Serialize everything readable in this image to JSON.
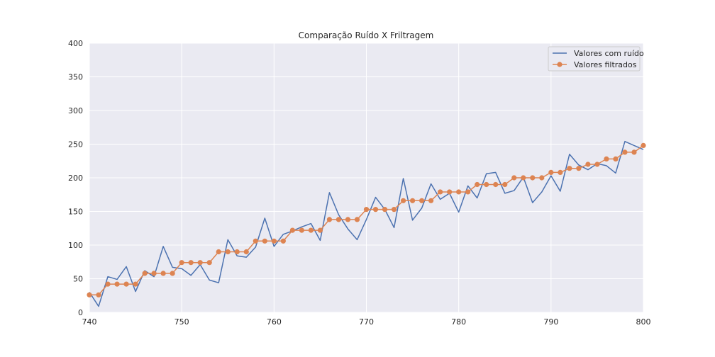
{
  "chart_data": {
    "type": "line",
    "title": "Comparação Ruído X Friltragem",
    "xlabel": "",
    "ylabel": "",
    "xlim": [
      740,
      800
    ],
    "ylim": [
      0,
      400
    ],
    "x_ticks": [
      740,
      750,
      760,
      770,
      780,
      790,
      800
    ],
    "y_ticks": [
      0,
      50,
      100,
      150,
      200,
      250,
      300,
      350,
      400
    ],
    "grid": true,
    "legend_position": "top-right",
    "series": [
      {
        "name": "Valores com ruído",
        "color": "#4c72b0",
        "marker": "none",
        "x": [
          740,
          741,
          742,
          743,
          744,
          745,
          746,
          747,
          748,
          749,
          750,
          751,
          752,
          753,
          754,
          755,
          756,
          757,
          758,
          759,
          760,
          761,
          762,
          763,
          764,
          765,
          766,
          767,
          768,
          769,
          770,
          771,
          772,
          773,
          774,
          775,
          776,
          777,
          778,
          779,
          780,
          781,
          782,
          783,
          784,
          785,
          786,
          787,
          788,
          789,
          790,
          791,
          792,
          793,
          794,
          795,
          796,
          797,
          798,
          799,
          800
        ],
        "y": [
          30,
          9,
          53,
          49,
          68,
          31,
          62,
          53,
          98,
          67,
          65,
          55,
          71,
          48,
          44,
          108,
          84,
          82,
          97,
          140,
          98,
          116,
          121,
          127,
          132,
          107,
          178,
          145,
          124,
          108,
          138,
          171,
          153,
          126,
          199,
          137,
          155,
          191,
          168,
          177,
          149,
          188,
          170,
          206,
          208,
          177,
          181,
          201,
          163,
          179,
          203,
          180,
          235,
          219,
          212,
          221,
          218,
          207,
          254,
          248,
          242
        ]
      },
      {
        "name": "Valores filtrados",
        "color": "#dd8452",
        "marker": "circle",
        "x": [
          740,
          741,
          742,
          743,
          744,
          745,
          746,
          747,
          748,
          749,
          750,
          751,
          752,
          753,
          754,
          755,
          756,
          757,
          758,
          759,
          760,
          761,
          762,
          763,
          764,
          765,
          766,
          767,
          768,
          769,
          770,
          771,
          772,
          773,
          774,
          775,
          776,
          777,
          778,
          779,
          780,
          781,
          782,
          783,
          784,
          785,
          786,
          787,
          788,
          789,
          790,
          791,
          792,
          793,
          794,
          795,
          796,
          797,
          798,
          799,
          800
        ],
        "y": [
          26,
          26,
          42,
          42,
          42,
          42,
          58,
          58,
          58,
          58,
          74,
          74,
          74,
          74,
          90,
          90,
          90,
          90,
          106,
          106,
          106,
          106,
          122,
          122,
          122,
          122,
          138,
          138,
          138,
          138,
          153,
          153,
          153,
          153,
          166,
          166,
          166,
          166,
          179,
          179,
          179,
          179,
          190,
          190,
          190,
          190,
          200,
          200,
          200,
          200,
          208,
          208,
          214,
          214,
          220,
          220,
          228,
          228,
          238,
          238,
          248
        ]
      }
    ]
  }
}
